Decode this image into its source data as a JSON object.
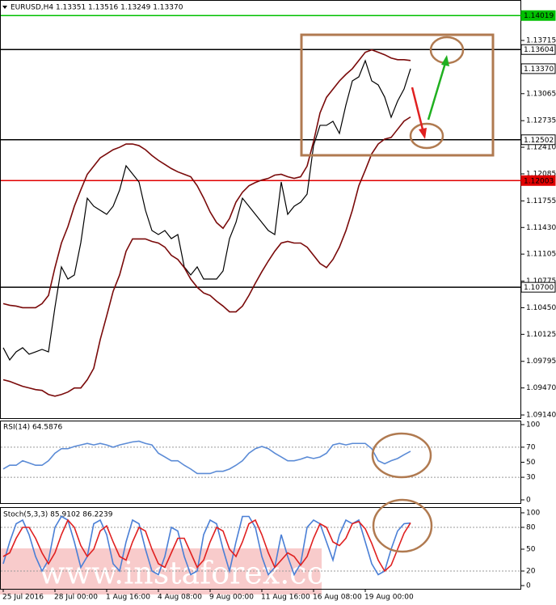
{
  "chart_data": [
    {
      "type": "line",
      "title": "EURUSD,H4  1.13351 1.13516 1.13249 1.13370",
      "categories": [
        "25 Jul 2016",
        null,
        null,
        null,
        null,
        null,
        null,
        null,
        "28 Jul 00:00",
        null,
        null,
        null,
        null,
        null,
        null,
        null,
        "1 Aug 16:00",
        null,
        null,
        null,
        null,
        null,
        null,
        null,
        "4 Aug 08:00",
        null,
        null,
        null,
        null,
        null,
        null,
        null,
        "9 Aug 00:00",
        null,
        null,
        null,
        null,
        null,
        null,
        null,
        "11 Aug 16:00",
        null,
        null,
        null,
        null,
        null,
        null,
        null,
        "16 Aug 08:00",
        null,
        null,
        null,
        null,
        null,
        null,
        null,
        "19 Aug 00:00",
        null,
        null,
        null,
        null,
        null,
        null,
        null
      ],
      "series": [
        {
          "color": "#000000",
          "values": [
            1.09961,
            1.09812,
            1.09911,
            1.09961,
            1.09882,
            1.09911,
            1.09941,
            1.09911,
            1.10455,
            1.10949,
            1.108,
            1.1085,
            1.11245,
            1.11788,
            1.1169,
            1.1164,
            1.11591,
            1.1169,
            1.11887,
            1.12184,
            1.12085,
            1.11986,
            1.1164,
            1.11393,
            1.11344,
            1.11393,
            1.11294,
            1.11344,
            1.10949,
            1.1085,
            1.10949,
            1.108,
            1.108,
            1.108,
            1.10899,
            1.11294,
            1.11492,
            1.11788,
            1.1169,
            1.11591,
            1.11492,
            1.11393,
            1.11344,
            1.11986,
            1.11591,
            1.1169,
            1.11739,
            1.11838,
            1.12431,
            1.12678,
            1.12678,
            1.12727,
            1.12579,
            1.12925,
            1.13221,
            1.1327,
            1.13468,
            1.13221,
            1.13172,
            1.13023,
            1.12776,
            1.12974,
            1.13122,
            1.1337
          ]
        },
        {
          "color": "#7a0a0a",
          "values": [
            1.105,
            1.1048,
            1.1047,
            1.1045,
            1.1045,
            1.1045,
            1.105,
            1.106,
            1.1094,
            1.1124,
            1.1144,
            1.1169,
            1.1189,
            1.1208,
            1.1218,
            1.1228,
            1.1233,
            1.1238,
            1.1241,
            1.1245,
            1.1245,
            1.1243,
            1.1238,
            1.1231,
            1.1225,
            1.122,
            1.1215,
            1.1211,
            1.1208,
            1.1205,
            1.1194,
            1.1179,
            1.1162,
            1.1149,
            1.1142,
            1.1154,
            1.1174,
            1.1186,
            1.1194,
            1.1198,
            1.1201,
            1.1203,
            1.1207,
            1.1208,
            1.1205,
            1.1203,
            1.1205,
            1.1218,
            1.1248,
            1.1283,
            1.1302,
            1.1312,
            1.1322,
            1.133,
            1.1337,
            1.1347,
            1.1357,
            1.136,
            1.1357,
            1.1354,
            1.135,
            1.1348,
            1.1348,
            1.1347
          ]
        },
        {
          "color": "#7a0a0a",
          "values": [
            1.0957,
            1.0955,
            1.0952,
            1.0949,
            1.0947,
            1.0945,
            1.0944,
            1.0939,
            1.0937,
            1.0939,
            1.0942,
            1.0947,
            1.0947,
            1.0957,
            1.0971,
            1.1006,
            1.1035,
            1.1065,
            1.1085,
            1.1114,
            1.1129,
            1.1129,
            1.1129,
            1.1126,
            1.1124,
            1.1119,
            1.1109,
            1.1104,
            1.1094,
            1.108,
            1.107,
            1.1063,
            1.106,
            1.1053,
            1.1047,
            1.104,
            1.104,
            1.1047,
            1.106,
            1.1075,
            1.1089,
            1.1102,
            1.1114,
            1.1124,
            1.1126,
            1.1124,
            1.1124,
            1.1119,
            1.1109,
            1.1099,
            1.1094,
            1.1104,
            1.1119,
            1.1139,
            1.1164,
            1.1194,
            1.1213,
            1.1233,
            1.1245,
            1.1251,
            1.1253,
            1.1263,
            1.1273,
            1.1278
          ]
        }
      ],
      "ylim": [
        1.09091,
        1.14209
      ],
      "yticks": [
        1.13715,
        1.13065,
        1.12735,
        {
          "value": 1.1241,
          "label": "1.12410"
        },
        1.12085,
        1.11755,
        {
          "value": 1.1143,
          "label": "1.11430"
        },
        1.11105,
        1.10775,
        {
          "value": 1.1045,
          "label": "1.10450"
        },
        1.10125,
        1.09795,
        {
          "value": 1.0947,
          "label": "1.09470"
        },
        {
          "value": 1.0914,
          "label": "1.09140"
        }
      ],
      "levels": [
        {
          "value": 1.14019,
          "color": "#00c000"
        },
        {
          "value": 1.13604,
          "color": "#000000"
        },
        {
          "value": 1.12502,
          "color": "#000000"
        },
        {
          "value": 1.12003,
          "color": "#e00000"
        },
        {
          "value": 1.107,
          "label": "1.10700",
          "color": "#000000"
        }
      ],
      "last_price": {
        "value": 1.1337,
        "label": "1.13370"
      },
      "watermark": "www.instaforex.com"
    },
    {
      "type": "line",
      "title": "RSI(14) 64.5876",
      "series": [
        {
          "color": "#5b8bd6",
          "values": [
            41,
            46,
            46,
            52,
            49,
            46,
            46,
            52,
            62,
            68,
            68,
            71,
            73,
            75,
            73,
            75,
            73,
            70,
            73,
            75,
            77,
            78,
            75,
            73,
            62,
            57,
            52,
            52,
            46,
            41,
            35,
            35,
            35,
            38,
            38,
            41,
            46,
            52,
            62,
            68,
            71,
            68,
            62,
            57,
            52,
            52,
            54,
            57,
            55,
            57,
            62,
            73,
            75,
            73,
            75,
            75,
            75,
            68,
            52,
            48,
            52,
            55,
            60,
            64.5876
          ]
        }
      ],
      "ylim": [
        0,
        100
      ],
      "yticks": [
        100,
        70,
        50,
        30,
        0
      ],
      "levels": [
        70,
        30
      ]
    },
    {
      "type": "line",
      "title": "Stoch(5,3,3) 85.9102 86.2239",
      "series": [
        {
          "color": "#4a7fd6",
          "values": [
            30,
            60,
            85,
            90,
            70,
            40,
            20,
            35,
            80,
            95,
            90,
            60,
            25,
            40,
            85,
            90,
            70,
            30,
            20,
            60,
            90,
            85,
            50,
            20,
            15,
            40,
            80,
            75,
            40,
            15,
            20,
            70,
            90,
            85,
            50,
            20,
            60,
            95,
            95,
            80,
            40,
            15,
            25,
            70,
            40,
            15,
            30,
            80,
            90,
            85,
            60,
            35,
            70,
            90,
            85,
            90,
            60,
            30,
            15,
            20,
            50,
            75,
            85,
            85.9102
          ]
        },
        {
          "color": "#e02020",
          "values": [
            40,
            45,
            65,
            80,
            80,
            65,
            45,
            30,
            45,
            70,
            90,
            80,
            55,
            40,
            50,
            75,
            82,
            60,
            40,
            35,
            60,
            80,
            75,
            50,
            30,
            25,
            45,
            65,
            65,
            45,
            25,
            35,
            60,
            80,
            75,
            50,
            40,
            60,
            85,
            90,
            70,
            45,
            25,
            35,
            45,
            40,
            28,
            40,
            65,
            85,
            80,
            60,
            55,
            65,
            85,
            88,
            78,
            58,
            35,
            20,
            28,
            50,
            72,
            86.2239
          ]
        }
      ],
      "ylim": [
        0,
        100
      ],
      "yticks": [
        100,
        80,
        50,
        20,
        0
      ],
      "levels": [
        80,
        20
      ]
    }
  ]
}
